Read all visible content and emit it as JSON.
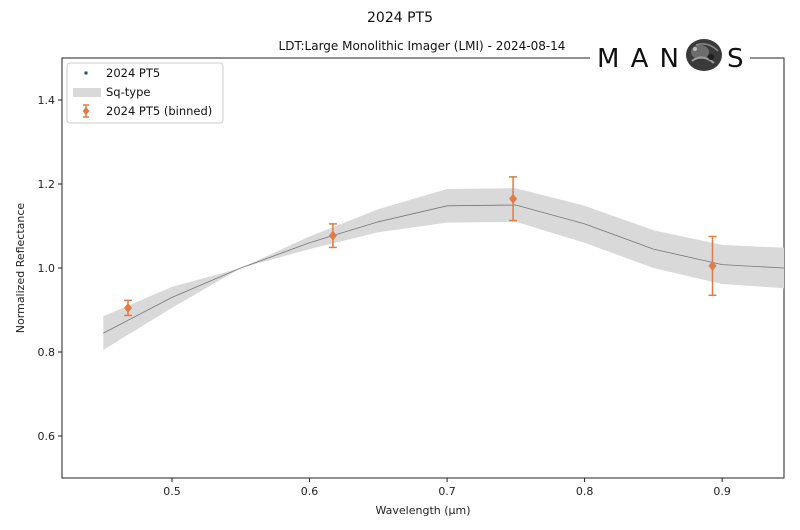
{
  "chart_data": {
    "type": "line",
    "title": "2024 PT5",
    "subtitle": "LDT:Large Monolithic Imager (LMI) - 2024-08-14",
    "xlabel": "Wavelength (μm)",
    "ylabel": "Normalized Reflectance",
    "xlim": [
      0.42,
      0.945
    ],
    "ylim": [
      0.5,
      1.5
    ],
    "x_ticks": [
      0.5,
      0.6,
      0.7,
      0.8,
      0.9
    ],
    "x_tick_labels": [
      "0.5",
      "0.6",
      "0.7",
      "0.8",
      "0.9"
    ],
    "y_ticks": [
      0.6,
      0.8,
      1.0,
      1.2,
      1.4
    ],
    "y_tick_labels": [
      "0.6",
      "0.8",
      "1.0",
      "1.2",
      "1.4"
    ],
    "grid": false,
    "legend_position": "top-left",
    "legend": [
      "2024 PT5",
      "Sq-type",
      "2024 PT5 (binned)"
    ],
    "colors": {
      "binned": "#e07b45",
      "band": "#d9d9d9",
      "line": "#777777",
      "point": "#1f4e79"
    },
    "series": [
      {
        "name": "Sq-type",
        "type": "band",
        "x": [
          0.45,
          0.5,
          0.55,
          0.6,
          0.65,
          0.7,
          0.75,
          0.8,
          0.85,
          0.9,
          0.945
        ],
        "mean": [
          0.845,
          0.93,
          1.0,
          1.06,
          1.11,
          1.148,
          1.15,
          1.105,
          1.045,
          1.008,
          1.0
        ],
        "lower": [
          0.805,
          0.905,
          1.0,
          1.045,
          1.085,
          1.108,
          1.11,
          1.06,
          1.0,
          0.962,
          0.952
        ],
        "upper": [
          0.885,
          0.955,
          1.0,
          1.075,
          1.14,
          1.188,
          1.19,
          1.148,
          1.09,
          1.055,
          1.048
        ]
      },
      {
        "name": "2024 PT5 (binned)",
        "type": "errorbar",
        "x": [
          0.468,
          0.617,
          0.748,
          0.893
        ],
        "y": [
          0.905,
          1.077,
          1.165,
          1.005
        ],
        "yerr": [
          0.018,
          0.028,
          0.052,
          0.07
        ]
      }
    ]
  },
  "logo": {
    "text_left": "MAN",
    "text_right": "S"
  }
}
